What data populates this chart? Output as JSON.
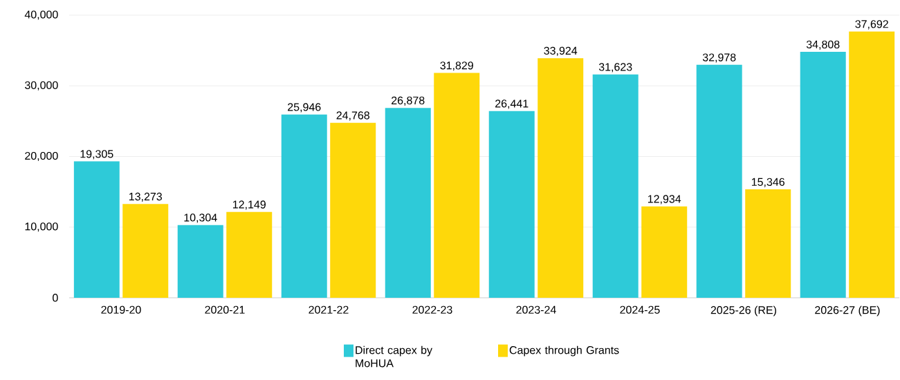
{
  "chart_data": {
    "type": "bar",
    "categories": [
      "2019-20",
      "2020-21",
      "2021-22",
      "2022-23",
      "2023-24",
      "2024-25",
      "2025-26 (RE)",
      "2026-27 (BE)"
    ],
    "series": [
      {
        "name": "Direct capex by MoHUA",
        "color": "#2ecad8",
        "values": [
          19305,
          10304,
          25946,
          26878,
          26441,
          31623,
          32978,
          34808
        ],
        "value_labels": [
          "19,305",
          "10,304",
          "25,946",
          "26,878",
          "26,441",
          "31,623",
          "32,978",
          "34,808"
        ]
      },
      {
        "name": "Capex through Grants",
        "color": "#fed80a",
        "values": [
          13273,
          12149,
          24768,
          31829,
          33924,
          12934,
          15346,
          37692
        ],
        "value_labels": [
          "13,273",
          "12,149",
          "24,768",
          "31,829",
          "33,924",
          "12,934",
          "15,346",
          "37,692"
        ]
      }
    ],
    "ylim": [
      0,
      40000
    ],
    "yticks": [
      {
        "value": 0,
        "label": "0"
      },
      {
        "value": 10000,
        "label": "10,000"
      },
      {
        "value": 20000,
        "label": "20,000"
      },
      {
        "value": 30000,
        "label": "30,000"
      },
      {
        "value": 40000,
        "label": "40,000"
      }
    ],
    "grid": "y",
    "legend": "bottom"
  }
}
